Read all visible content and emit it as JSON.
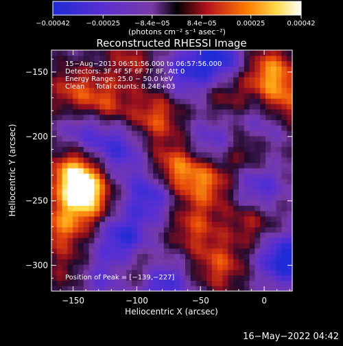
{
  "chart_data": {
    "type": "heatmap",
    "title": "Reconstructed RHESSI Image",
    "xlabel": "Heliocentric X (arcsec)",
    "ylabel": "Heliocentric Y (arcsec)",
    "xlim": [
      -167,
      22
    ],
    "ylim": [
      -320,
      -133
    ],
    "x_ticks": [
      -150,
      -100,
      -50,
      0
    ],
    "x_tick_labels": [
      "−150",
      "−100",
      "−50",
      "0"
    ],
    "y_ticks": [
      -150,
      -200,
      -250,
      -300
    ],
    "y_tick_labels": [
      "−150",
      "−200",
      "−250",
      "−300"
    ],
    "colorbar": {
      "range": [
        -0.00042,
        0.00042
      ],
      "ticks": [
        -0.00042,
        -0.00025,
        -8.4e-05,
        8.4e-05,
        0.00025,
        0.00042
      ],
      "tick_labels": [
        "−0.00042",
        "−0.00025",
        "−8.4e−05",
        "8.4e−05",
        "0.00025",
        "0.00042"
      ],
      "unit_label": "(photons cm⁻² s⁻¹ asec⁻²)"
    },
    "annotations": [
      "15−Aug−2013 06:51:56.000 to 06:57:56.000",
      "Detectors: 3F 4F 5F 6F 7F 8F, Att 0",
      "Energy Range: 25.0 − 50.0 keV",
      "Clean     Total counts: 8.24E+03"
    ],
    "peak_label": "Position of Peak = [−139,−227]",
    "peak": [
      -139,
      -227
    ],
    "sources": [
      {
        "x": -148,
        "y": -230,
        "value": 1.0
      },
      {
        "x": -140,
        "y": -248,
        "value": 0.85
      },
      {
        "x": -70,
        "y": -225,
        "value": 0.7
      },
      {
        "x": -45,
        "y": -235,
        "value": 0.65
      },
      {
        "x": -85,
        "y": -185,
        "value": 0.6
      },
      {
        "x": 5,
        "y": -150,
        "value": 0.75
      },
      {
        "x": 15,
        "y": -175,
        "value": 0.6
      },
      {
        "x": -125,
        "y": -175,
        "value": 0.55
      },
      {
        "x": -150,
        "y": -165,
        "value": 0.5
      },
      {
        "x": -160,
        "y": -270,
        "value": 0.6
      },
      {
        "x": -15,
        "y": -210,
        "value": 0.45
      },
      {
        "x": -55,
        "y": -270,
        "value": 0.5
      },
      {
        "x": -10,
        "y": -265,
        "value": 0.45
      },
      {
        "x": -100,
        "y": -300,
        "value": 0.4
      },
      {
        "x": -35,
        "y": -300,
        "value": 0.55
      },
      {
        "x": -150,
        "y": -305,
        "value": 0.35
      },
      {
        "x": -105,
        "y": -140,
        "value": 0.4
      },
      {
        "x": -30,
        "y": -165,
        "value": 0.4
      }
    ],
    "minima": [
      {
        "x": -35,
        "y": -140,
        "value": -0.8
      },
      {
        "x": -90,
        "y": -245,
        "value": -0.7
      },
      {
        "x": -110,
        "y": -280,
        "value": -0.8
      },
      {
        "x": 15,
        "y": -295,
        "value": -0.9
      },
      {
        "x": -5,
        "y": -240,
        "value": -0.6
      },
      {
        "x": -115,
        "y": -210,
        "value": -0.6
      },
      {
        "x": -80,
        "y": -315,
        "value": -0.7
      },
      {
        "x": -40,
        "y": -205,
        "value": -0.5
      },
      {
        "x": -140,
        "y": -195,
        "value": -0.5
      },
      {
        "x": 0,
        "y": -190,
        "value": -0.5
      },
      {
        "x": -60,
        "y": -150,
        "value": -0.6
      },
      {
        "x": -130,
        "y": -310,
        "value": -0.5
      }
    ]
  },
  "footer_date": "16−May−2022 04:42"
}
